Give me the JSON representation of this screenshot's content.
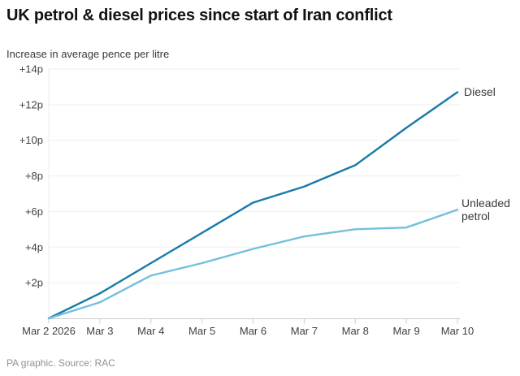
{
  "header": {
    "title": "UK petrol & diesel prices since start of Iran conflict"
  },
  "subtitle": "Increase in average pence per litre",
  "footer": "PA graphic. Source: RAC",
  "chart_data": {
    "type": "line",
    "title": "UK petrol & diesel prices since start of Iran conflict",
    "ylabel": "Increase in average pence per litre",
    "x_labels": [
      "Mar 2 2026",
      "Mar 3",
      "Mar 4",
      "Mar 5",
      "Mar 6",
      "Mar 7",
      "Mar 8",
      "Mar 9",
      "Mar 10"
    ],
    "y_tick_values": [
      2,
      4,
      6,
      8,
      10,
      12,
      14
    ],
    "y_tick_labels": [
      "+2p",
      "+4p",
      "+6p",
      "+8p",
      "+10p",
      "+12p",
      "+14p"
    ],
    "ylim": [
      0,
      14
    ],
    "grid": "horizontal",
    "legend_position": "line-end-labels",
    "series": [
      {
        "name": "Diesel",
        "color": "#1779a9",
        "values": [
          0,
          1.4,
          3.1,
          4.8,
          6.5,
          7.4,
          8.6,
          10.7,
          12.7
        ]
      },
      {
        "name": "Unleaded petrol",
        "color": "#74bfdd",
        "values": [
          0,
          0.9,
          2.4,
          3.1,
          3.9,
          4.6,
          5.0,
          5.1,
          6.1
        ]
      }
    ],
    "colors": {
      "grid": "#efefef",
      "axis": "#cccccc",
      "tick_text": "#404040",
      "plot_left_border": "#ececec"
    },
    "source": "PA graphic. Source: RAC"
  }
}
